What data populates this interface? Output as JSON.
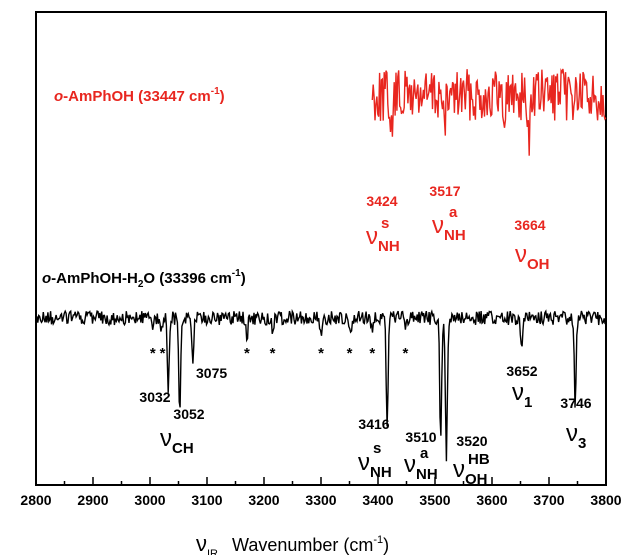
{
  "chart_data": {
    "type": "line",
    "xlabel_symbol": "ν",
    "xlabel_symbol_sub": "IR",
    "xlabel_text": "Wavenumber (cm",
    "xlabel_sup": "-1",
    "xlabel_close": ")",
    "xlim": [
      2800,
      3800
    ],
    "x_ticks": [
      "2800",
      "2900",
      "3000",
      "3100",
      "3200",
      "3300",
      "3400",
      "3500",
      "3600",
      "3700",
      "3800"
    ],
    "series": [
      {
        "name_prefix": "o",
        "name_main": "-AmPhOH (33447 cm",
        "name_sup": "-1",
        "name_close": ")",
        "color": "#e8261f",
        "x_range": [
          3390,
          3800
        ],
        "dips": [
          {
            "x": 3424,
            "depth": 0.55
          },
          {
            "x": 3517,
            "depth": 0.5
          },
          {
            "x": 3620,
            "depth": 0.25
          },
          {
            "x": 3664,
            "depth": 0.62
          }
        ],
        "peaks": [
          {
            "value": "3424",
            "symbol": "ν",
            "sub": "NH",
            "sup": "s"
          },
          {
            "value": "3517",
            "symbol": "ν",
            "sub": "NH",
            "sup": "a"
          },
          {
            "value": "3664",
            "symbol": "ν",
            "sub": "OH",
            "sup": ""
          }
        ]
      },
      {
        "name_prefix": "o",
        "name_main": "-AmPhOH-H",
        "name_sub": "2",
        "name_rest": "O (33396 cm",
        "name_sup": "-1",
        "name_close": ")",
        "color": "#000000",
        "x_range": [
          2800,
          3800
        ],
        "dips": [
          {
            "x": 3005,
            "depth": 0.08
          },
          {
            "x": 3020,
            "depth": 0.1
          },
          {
            "x": 3032,
            "depth": 0.58
          },
          {
            "x": 3052,
            "depth": 0.78
          },
          {
            "x": 3075,
            "depth": 0.38
          },
          {
            "x": 3170,
            "depth": 0.18
          },
          {
            "x": 3215,
            "depth": 0.1
          },
          {
            "x": 3300,
            "depth": 0.12
          },
          {
            "x": 3352,
            "depth": 0.08
          },
          {
            "x": 3390,
            "depth": 0.1
          },
          {
            "x": 3416,
            "depth": 0.88
          },
          {
            "x": 3448,
            "depth": 0.1
          },
          {
            "x": 3510,
            "depth": 1.0
          },
          {
            "x": 3520,
            "depth": 1.18
          },
          {
            "x": 3652,
            "depth": 0.22
          },
          {
            "x": 3746,
            "depth": 0.72
          }
        ],
        "peaks": [
          {
            "value": "3032",
            "symbol": "",
            "sub": "",
            "sup": ""
          },
          {
            "value": "3052",
            "symbol": "ν",
            "sub": "CH",
            "sup": ""
          },
          {
            "value": "3075",
            "symbol": "",
            "sub": "",
            "sup": ""
          },
          {
            "value": "3416",
            "symbol": "ν",
            "sub": "NH",
            "sup": "s"
          },
          {
            "value": "3510",
            "symbol": "ν",
            "sub": "NH",
            "sup": "a"
          },
          {
            "value": "3520",
            "symbol": "ν",
            "sub": "OH",
            "sup": "HB"
          },
          {
            "value": "3652",
            "symbol": "ν",
            "sub": "1",
            "sup": ""
          },
          {
            "value": "3746",
            "symbol": "ν",
            "sub": "3",
            "sup": ""
          }
        ],
        "asterisks": [
          3005,
          3022,
          3170,
          3215,
          3300,
          3350,
          3390,
          3448
        ]
      }
    ],
    "asterisk_symbol": "*"
  }
}
